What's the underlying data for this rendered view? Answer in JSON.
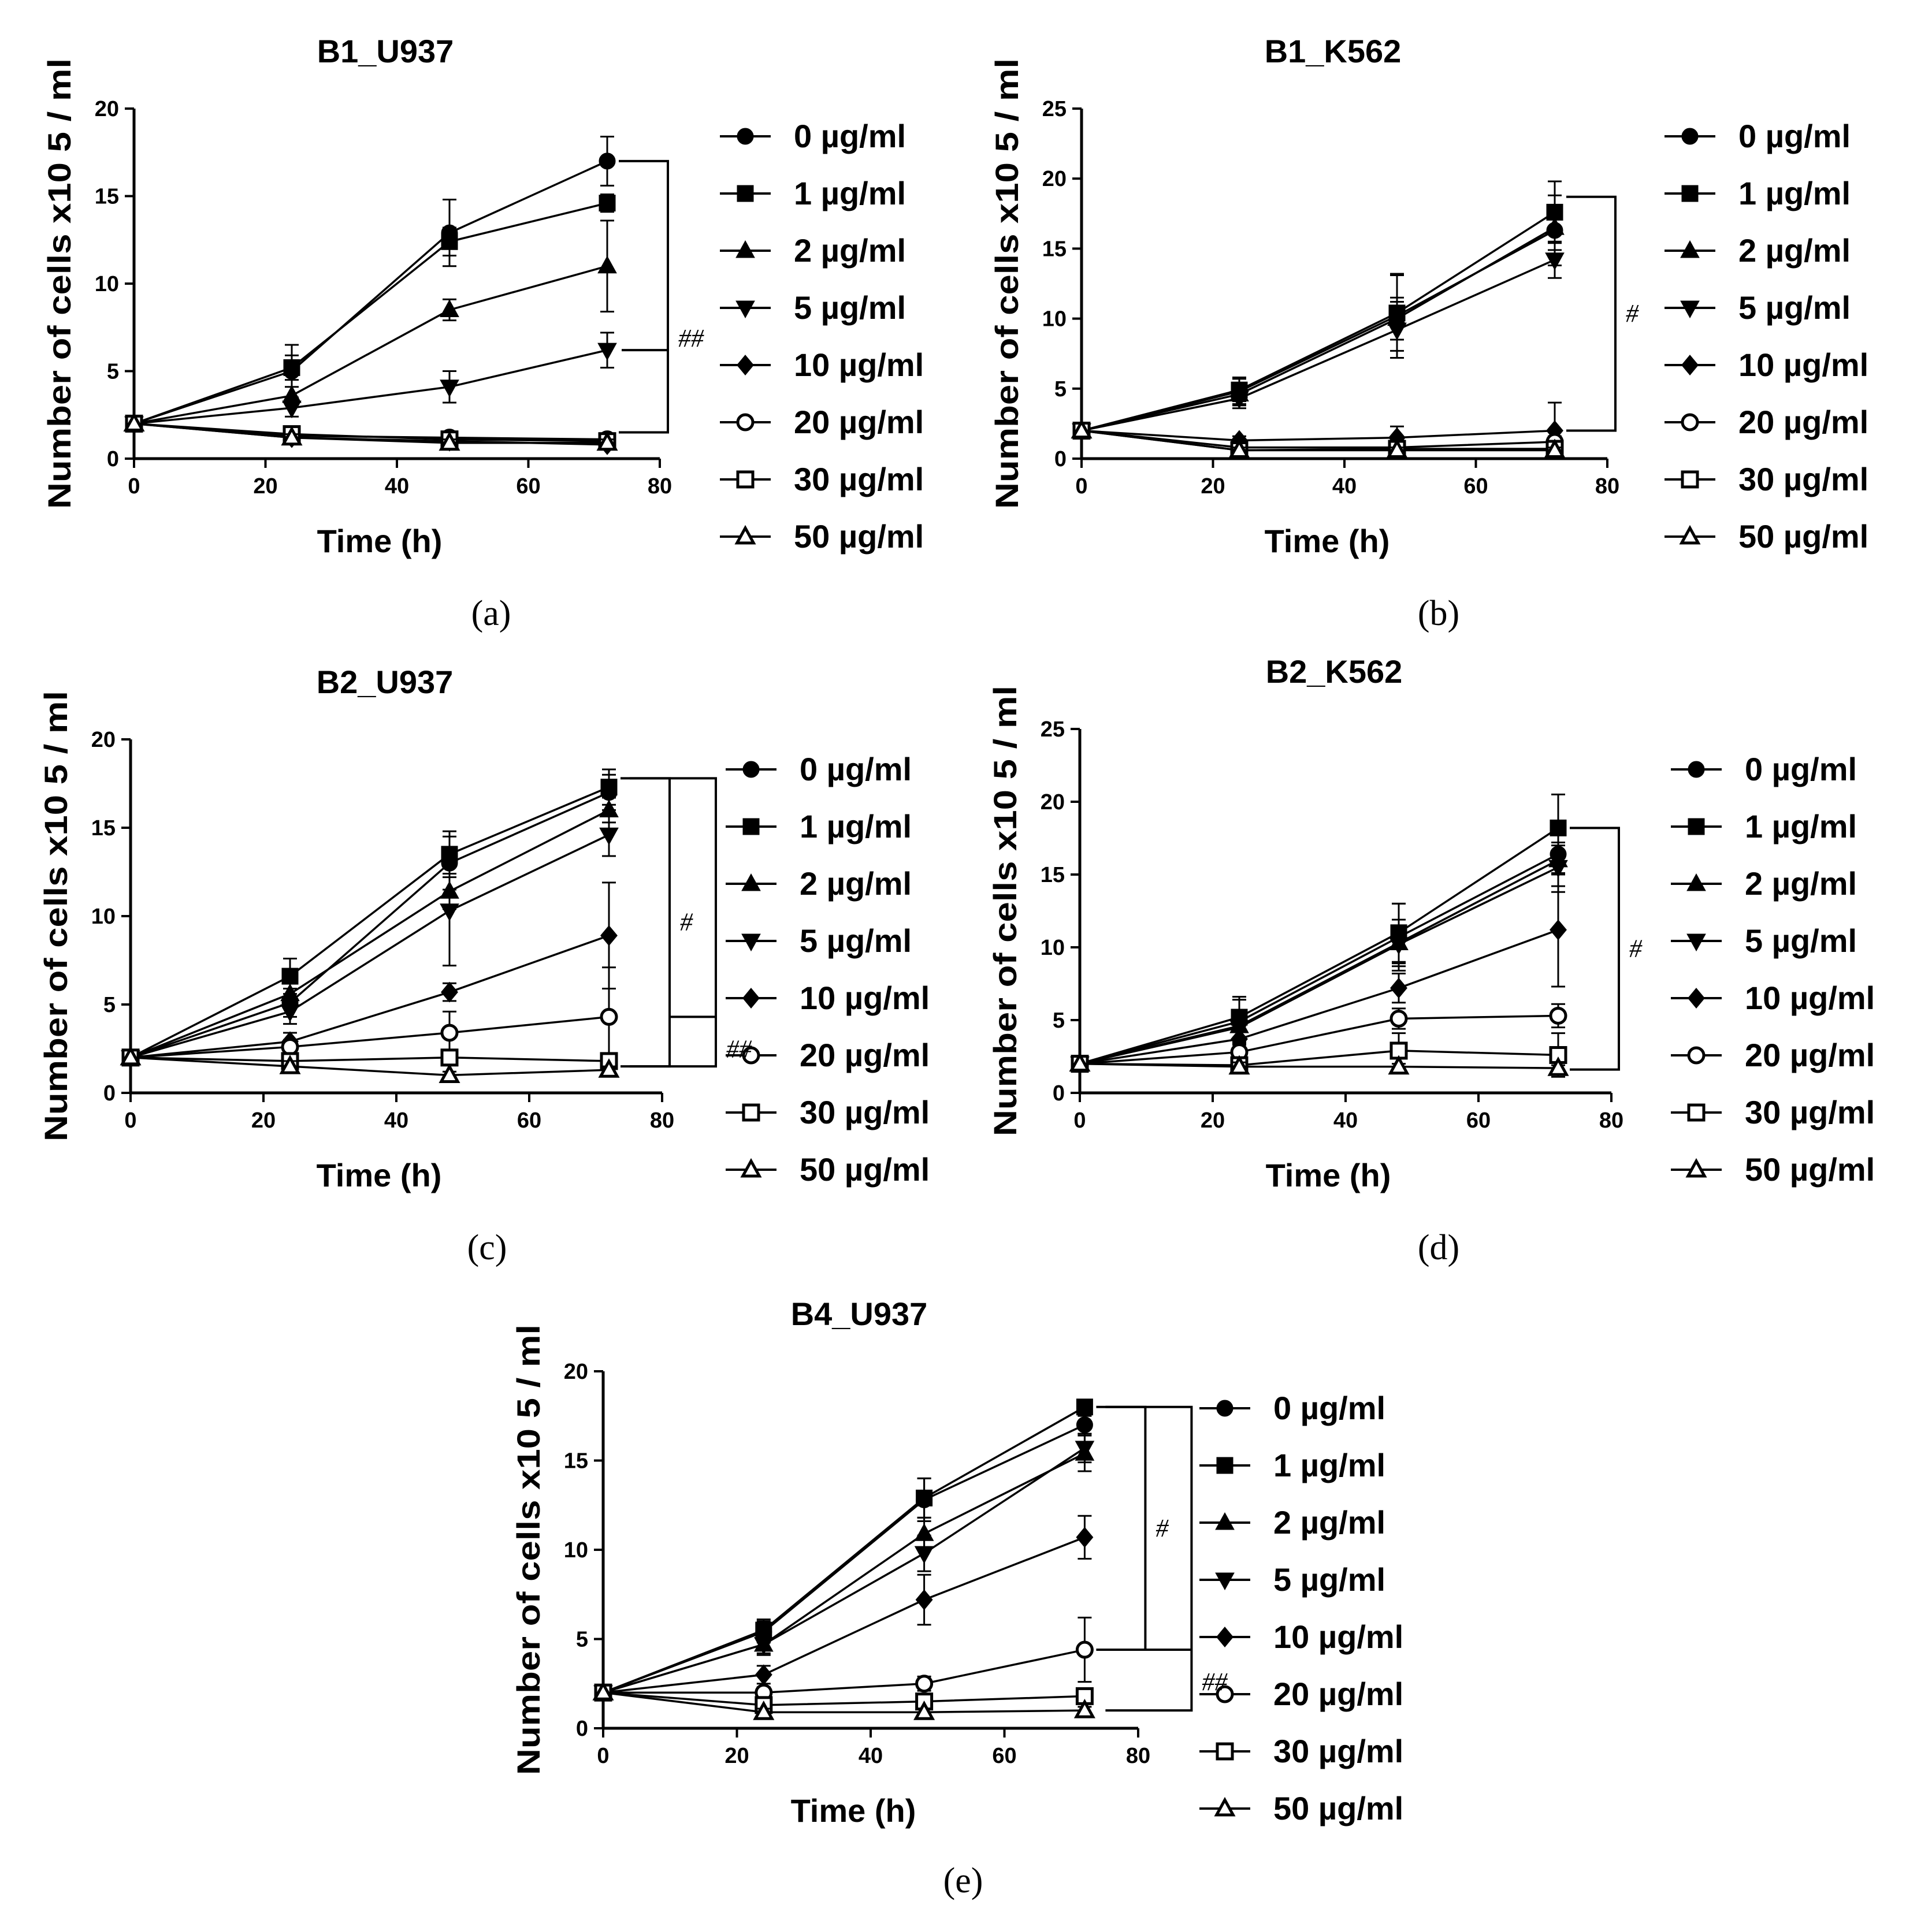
{
  "chart_data": [
    {
      "type": "line",
      "panel": "a",
      "caption": "(a)",
      "title": "B1_U937",
      "xlabel": "Time (h)",
      "ylabel": "Number of cells x10 5 / ml",
      "xlim": [
        0,
        80
      ],
      "ylim": [
        0,
        20
      ],
      "xticks": [
        0,
        20,
        40,
        60,
        80
      ],
      "yticks": [
        0,
        5,
        10,
        15,
        20
      ],
      "x": [
        0,
        24,
        48,
        72
      ],
      "series": [
        {
          "name": "0 µg/ml",
          "marker": "circle-filled",
          "values": [
            2,
            5.0,
            12.9,
            17.0
          ],
          "errors": [
            0,
            1.5,
            1.9,
            1.4
          ]
        },
        {
          "name": "1 µg/ml",
          "marker": "square-filled",
          "values": [
            2,
            5.2,
            12.4,
            14.6
          ],
          "errors": [
            0,
            0.7,
            0.8,
            0.5
          ]
        },
        {
          "name": "2 µg/ml",
          "marker": "triangle-up-filled",
          "values": [
            2,
            3.6,
            8.5,
            11.0
          ],
          "errors": [
            0,
            0.5,
            0.6,
            2.6
          ]
        },
        {
          "name": "5 µg/ml",
          "marker": "triangle-down-filled",
          "values": [
            2,
            2.9,
            4.1,
            6.2
          ],
          "errors": [
            0,
            0.5,
            0.9,
            1.0
          ]
        },
        {
          "name": "10 µg/ml",
          "marker": "diamond-filled",
          "values": [
            2,
            1.2,
            1.0,
            0.8
          ],
          "errors": [
            0,
            0.2,
            0.2,
            0.2
          ]
        },
        {
          "name": "20 µg/ml",
          "marker": "circle-open",
          "values": [
            2,
            1.3,
            1.2,
            1.1
          ],
          "errors": [
            0,
            0.2,
            0.2,
            0.2
          ]
        },
        {
          "name": "30 µg/ml",
          "marker": "square-open",
          "values": [
            2,
            1.4,
            1.1,
            1.0
          ],
          "errors": [
            0,
            0.2,
            0.2,
            0.2
          ]
        },
        {
          "name": "50 µg/ml",
          "marker": "triangle-up-open",
          "values": [
            2,
            1.2,
            0.9,
            0.9
          ],
          "errors": [
            0,
            0.2,
            0.2,
            0.2
          ]
        }
      ],
      "brackets": [
        {
          "label": "##",
          "from": 17.0,
          "to": 1.5,
          "mid": 6.2
        }
      ]
    },
    {
      "type": "line",
      "panel": "b",
      "caption": "(b)",
      "title": "B1_K562",
      "xlabel": "Time (h)",
      "ylabel": "Number of cells x10 5 / ml",
      "xlim": [
        0,
        80
      ],
      "ylim": [
        0,
        25
      ],
      "xticks": [
        0,
        20,
        40,
        60,
        80
      ],
      "yticks": [
        0,
        5,
        10,
        15,
        20,
        25
      ],
      "x": [
        0,
        24,
        48,
        72
      ],
      "series": [
        {
          "name": "0 µg/ml",
          "marker": "circle-filled",
          "values": [
            2,
            4.8,
            10.2,
            16.3
          ],
          "errors": [
            0,
            1.0,
            3.0,
            2.5
          ]
        },
        {
          "name": "1 µg/ml",
          "marker": "square-filled",
          "values": [
            2,
            4.9,
            10.4,
            17.6
          ],
          "errors": [
            0,
            0.8,
            2.7,
            2.2
          ]
        },
        {
          "name": "2 µg/ml",
          "marker": "triangle-up-filled",
          "values": [
            2,
            4.6,
            10.0,
            16.5
          ],
          "errors": [
            0,
            0.7,
            1.5,
            1.6
          ]
        },
        {
          "name": "5 µg/ml",
          "marker": "triangle-down-filled",
          "values": [
            2,
            4.3,
            9.2,
            14.2
          ],
          "errors": [
            0,
            0.7,
            2.0,
            1.3
          ]
        },
        {
          "name": "10 µg/ml",
          "marker": "diamond-filled",
          "values": [
            2,
            1.3,
            1.5,
            2.0
          ],
          "errors": [
            0,
            0.3,
            0.8,
            2.0
          ]
        },
        {
          "name": "20 µg/ml",
          "marker": "circle-open",
          "values": [
            2,
            0.8,
            0.8,
            1.2
          ],
          "errors": [
            0,
            0.2,
            0.3,
            0.4
          ]
        },
        {
          "name": "30 µg/ml",
          "marker": "square-open",
          "values": [
            2,
            0.6,
            0.7,
            0.7
          ],
          "errors": [
            0,
            0.2,
            0.2,
            0.2
          ]
        },
        {
          "name": "50 µg/ml",
          "marker": "triangle-up-open",
          "values": [
            2,
            0.6,
            0.6,
            0.6
          ],
          "errors": [
            0,
            0.2,
            0.2,
            0.2
          ]
        }
      ],
      "brackets": [
        {
          "label": "#",
          "from": 18.7,
          "to": 2.0,
          "mid": null
        }
      ]
    },
    {
      "type": "line",
      "panel": "c",
      "caption": "(c)",
      "title": "B2_U937",
      "xlabel": "Time (h)",
      "ylabel": "Number of cells x10 5 / ml",
      "xlim": [
        0,
        80
      ],
      "ylim": [
        0,
        20
      ],
      "xticks": [
        0,
        20,
        40,
        60,
        80
      ],
      "yticks": [
        0,
        5,
        10,
        15,
        20
      ],
      "x": [
        0,
        24,
        48,
        72
      ],
      "series": [
        {
          "name": "0 µg/ml",
          "marker": "circle-filled",
          "values": [
            2,
            5.1,
            13.0,
            17.0
          ],
          "errors": [
            0,
            0.8,
            1.5,
            1.0
          ]
        },
        {
          "name": "1 µg/ml",
          "marker": "square-filled",
          "values": [
            2,
            6.6,
            13.5,
            17.3
          ],
          "errors": [
            0,
            1.0,
            1.3,
            1.0
          ]
        },
        {
          "name": "2 µg/ml",
          "marker": "triangle-up-filled",
          "values": [
            2,
            5.6,
            11.4,
            16.0
          ],
          "errors": [
            0,
            0.7,
            1.0,
            0.7
          ]
        },
        {
          "name": "5 µg/ml",
          "marker": "triangle-down-filled",
          "values": [
            2,
            4.6,
            10.3,
            14.6
          ],
          "errors": [
            0,
            0.7,
            3.1,
            1.2
          ]
        },
        {
          "name": "10 µg/ml",
          "marker": "diamond-filled",
          "values": [
            2,
            2.9,
            5.7,
            8.9
          ],
          "errors": [
            0,
            0.5,
            0.5,
            3.0
          ]
        },
        {
          "name": "20 µg/ml",
          "marker": "circle-open",
          "values": [
            2,
            2.6,
            3.4,
            4.3
          ],
          "errors": [
            0,
            0.4,
            1.2,
            2.8
          ]
        },
        {
          "name": "30 µg/ml",
          "marker": "square-open",
          "values": [
            2,
            1.8,
            2.0,
            1.8
          ],
          "errors": [
            0,
            0.3,
            0.3,
            0.3
          ]
        },
        {
          "name": "50 µg/ml",
          "marker": "triangle-up-open",
          "values": [
            2,
            1.5,
            1.0,
            1.3
          ],
          "errors": [
            0,
            0.3,
            0.2,
            0.2
          ]
        }
      ],
      "brackets": [
        {
          "label": "#",
          "from": 17.8,
          "to": 1.5,
          "mid": null
        },
        {
          "label": "##",
          "from": 17.8,
          "to": 1.5,
          "mid": 4.3
        }
      ]
    },
    {
      "type": "line",
      "panel": "d",
      "caption": "(d)",
      "title": "B2_K562",
      "xlabel": "Time (h)",
      "ylabel": "Number of cells x10 5 / ml",
      "xlim": [
        0,
        80
      ],
      "ylim": [
        0,
        25
      ],
      "xticks": [
        0,
        20,
        40,
        60,
        80
      ],
      "yticks": [
        0,
        5,
        10,
        15,
        20,
        25
      ],
      "x": [
        0,
        24,
        48,
        72
      ],
      "series": [
        {
          "name": "0 µg/ml",
          "marker": "circle-filled",
          "values": [
            2,
            4.9,
            10.7,
            16.4
          ],
          "errors": [
            0,
            1.5,
            2.3,
            2.2
          ]
        },
        {
          "name": "1 µg/ml",
          "marker": "square-filled",
          "values": [
            2,
            5.2,
            11.0,
            18.2
          ],
          "errors": [
            0,
            1.4,
            2.0,
            2.3
          ]
        },
        {
          "name": "2 µg/ml",
          "marker": "triangle-up-filled",
          "values": [
            2,
            4.6,
            10.3,
            16.0
          ],
          "errors": [
            0,
            1.0,
            1.6,
            1.0
          ]
        },
        {
          "name": "5 µg/ml",
          "marker": "triangle-down-filled",
          "values": [
            2,
            4.5,
            10.2,
            15.5
          ],
          "errors": [
            0,
            1.0,
            1.3,
            1.7
          ]
        },
        {
          "name": "10 µg/ml",
          "marker": "diamond-filled",
          "values": [
            2,
            3.7,
            7.2,
            11.2
          ],
          "errors": [
            0,
            0.6,
            1.0,
            3.9
          ]
        },
        {
          "name": "20 µg/ml",
          "marker": "circle-open",
          "values": [
            2,
            2.8,
            5.1,
            5.3
          ],
          "errors": [
            0,
            0.5,
            0.7,
            0.8
          ]
        },
        {
          "name": "30 µg/ml",
          "marker": "square-open",
          "values": [
            2,
            1.9,
            2.9,
            2.6
          ],
          "errors": [
            0,
            0.3,
            1.2,
            1.5
          ]
        },
        {
          "name": "50 µg/ml",
          "marker": "triangle-up-open",
          "values": [
            2,
            1.8,
            1.8,
            1.7
          ],
          "errors": [
            0,
            0.3,
            0.2,
            0.2
          ]
        }
      ],
      "brackets": [
        {
          "label": "#",
          "from": 18.2,
          "to": 1.6,
          "mid": null
        }
      ]
    },
    {
      "type": "line",
      "panel": "e",
      "caption": "(e)",
      "title": "B4_U937",
      "xlabel": "Time (h)",
      "ylabel": "Number of cells x10 5 / ml",
      "xlim": [
        0,
        80
      ],
      "ylim": [
        0,
        20
      ],
      "xticks": [
        0,
        20,
        40,
        60,
        80
      ],
      "yticks": [
        0,
        5,
        10,
        15,
        20
      ],
      "x": [
        0,
        24,
        48,
        72
      ],
      "series": [
        {
          "name": "0 µg/ml",
          "marker": "circle-filled",
          "values": [
            2,
            5.4,
            12.8,
            17.0
          ],
          "errors": [
            0,
            0.6,
            1.2,
            0.5
          ]
        },
        {
          "name": "1 µg/ml",
          "marker": "square-filled",
          "values": [
            2,
            5.5,
            12.9,
            18.0
          ],
          "errors": [
            0,
            0.6,
            1.1,
            0.4
          ]
        },
        {
          "name": "2 µg/ml",
          "marker": "triangle-up-filled",
          "values": [
            2,
            4.7,
            10.9,
            15.4
          ],
          "errors": [
            0,
            0.6,
            0.9,
            1.0
          ]
        },
        {
          "name": "5 µg/ml",
          "marker": "triangle-down-filled",
          "values": [
            2,
            4.7,
            9.8,
            15.7
          ],
          "errors": [
            0,
            0.5,
            1.0,
            0.8
          ]
        },
        {
          "name": "10 µg/ml",
          "marker": "diamond-filled",
          "values": [
            2,
            3.0,
            7.2,
            10.7
          ],
          "errors": [
            0,
            0.5,
            1.4,
            1.2
          ]
        },
        {
          "name": "20 µg/ml",
          "marker": "circle-open",
          "values": [
            2,
            2.0,
            2.5,
            4.4
          ],
          "errors": [
            0,
            0.3,
            0.4,
            1.8
          ]
        },
        {
          "name": "30 µg/ml",
          "marker": "square-open",
          "values": [
            2,
            1.3,
            1.5,
            1.8
          ],
          "errors": [
            0,
            0.3,
            0.3,
            0.3
          ]
        },
        {
          "name": "50 µg/ml",
          "marker": "triangle-up-open",
          "values": [
            2,
            0.9,
            0.9,
            1.0
          ],
          "errors": [
            0,
            0.2,
            0.2,
            0.2
          ]
        }
      ],
      "brackets": [
        {
          "label": "#",
          "from": 18.0,
          "to": 4.4,
          "mid": null
        },
        {
          "label": "##",
          "from": 18.0,
          "to": 1.0,
          "mid": 4.4
        }
      ]
    }
  ]
}
